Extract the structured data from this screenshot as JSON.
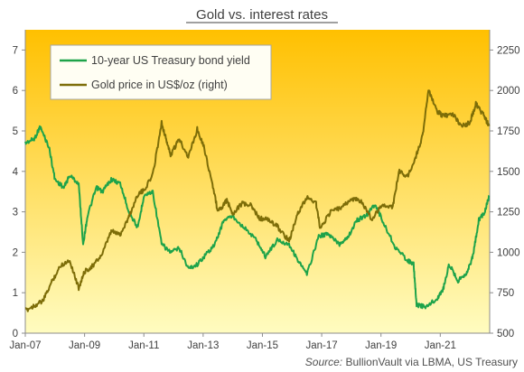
{
  "chart_data": {
    "type": "line",
    "title": "Gold vs. interest rates",
    "source_label": "Source:",
    "source_text": "BullionVault via LBMA, US Treasury",
    "x_ticks": [
      "Jan-07",
      "Jan-09",
      "Jan-11",
      "Jan-13",
      "Jan-15",
      "Jan-17",
      "Jan-19",
      "Jan-21"
    ],
    "x_range": [
      "Jan-07",
      "Sep-22"
    ],
    "y_left": {
      "ticks": [
        0,
        1,
        2,
        3,
        4,
        5,
        6,
        7
      ],
      "range": [
        0,
        7.5
      ]
    },
    "y_right": {
      "ticks": [
        500,
        750,
        1000,
        1250,
        1500,
        1750,
        2000,
        2250
      ],
      "range": [
        500,
        2375
      ]
    },
    "legend_position": "top-left",
    "grid": false,
    "background": {
      "top": "#ffc000",
      "bottom": "#fffcc0"
    },
    "series": [
      {
        "name": "10-year US Treasury bond yield",
        "axis": "left",
        "color": "#1ea34a",
        "x": [
          2007.0,
          2007.3,
          2007.5,
          2007.8,
          2008.0,
          2008.3,
          2008.5,
          2008.8,
          2008.95,
          2009.1,
          2009.4,
          2009.6,
          2009.9,
          2010.2,
          2010.5,
          2010.8,
          2011.0,
          2011.3,
          2011.6,
          2011.9,
          2012.2,
          2012.5,
          2012.8,
          2013.1,
          2013.4,
          2013.7,
          2014.0,
          2014.4,
          2014.8,
          2015.1,
          2015.5,
          2015.9,
          2016.2,
          2016.5,
          2016.9,
          2017.2,
          2017.6,
          2017.9,
          2018.2,
          2018.5,
          2018.8,
          2019.1,
          2019.5,
          2019.9,
          2020.1,
          2020.2,
          2020.5,
          2020.9,
          2021.1,
          2021.3,
          2021.6,
          2021.9,
          2022.1,
          2022.3,
          2022.5,
          2022.65
        ],
        "values": [
          4.7,
          4.8,
          5.1,
          4.6,
          3.8,
          3.6,
          3.9,
          3.7,
          2.2,
          2.9,
          3.6,
          3.5,
          3.8,
          3.7,
          3.0,
          2.6,
          3.4,
          3.5,
          2.2,
          2.0,
          2.1,
          1.6,
          1.7,
          1.95,
          2.2,
          2.8,
          2.9,
          2.6,
          2.3,
          1.9,
          2.3,
          2.2,
          1.8,
          1.45,
          2.4,
          2.45,
          2.2,
          2.4,
          2.8,
          2.9,
          3.2,
          2.7,
          2.1,
          1.8,
          1.7,
          0.7,
          0.65,
          0.85,
          1.1,
          1.7,
          1.3,
          1.5,
          1.9,
          2.8,
          3.0,
          3.4
        ]
      },
      {
        "name": "Gold price in US$/oz (right)",
        "axis": "right",
        "color": "#7d6d08",
        "x": [
          2007.0,
          2007.3,
          2007.6,
          2007.9,
          2008.2,
          2008.5,
          2008.8,
          2009.0,
          2009.3,
          2009.6,
          2009.9,
          2010.2,
          2010.5,
          2010.8,
          2011.0,
          2011.3,
          2011.6,
          2011.75,
          2011.9,
          2012.2,
          2012.5,
          2012.8,
          2013.0,
          2013.3,
          2013.5,
          2013.8,
          2014.0,
          2014.3,
          2014.6,
          2014.9,
          2015.2,
          2015.5,
          2015.9,
          2016.2,
          2016.5,
          2016.8,
          2016.95,
          2017.3,
          2017.7,
          2018.0,
          2018.3,
          2018.7,
          2019.0,
          2019.4,
          2019.6,
          2019.9,
          2020.2,
          2020.4,
          2020.6,
          2020.9,
          2021.1,
          2021.4,
          2021.7,
          2022.0,
          2022.2,
          2022.45,
          2022.65
        ],
        "values": [
          640,
          670,
          700,
          820,
          920,
          950,
          780,
          880,
          920,
          990,
          1130,
          1110,
          1220,
          1360,
          1380,
          1480,
          1800,
          1700,
          1600,
          1700,
          1590,
          1760,
          1670,
          1430,
          1250,
          1320,
          1240,
          1300,
          1290,
          1210,
          1200,
          1160,
          1070,
          1240,
          1340,
          1310,
          1150,
          1250,
          1280,
          1330,
          1320,
          1200,
          1290,
          1280,
          1500,
          1470,
          1600,
          1720,
          2000,
          1870,
          1840,
          1860,
          1780,
          1800,
          1920,
          1850,
          1780
        ]
      }
    ]
  }
}
